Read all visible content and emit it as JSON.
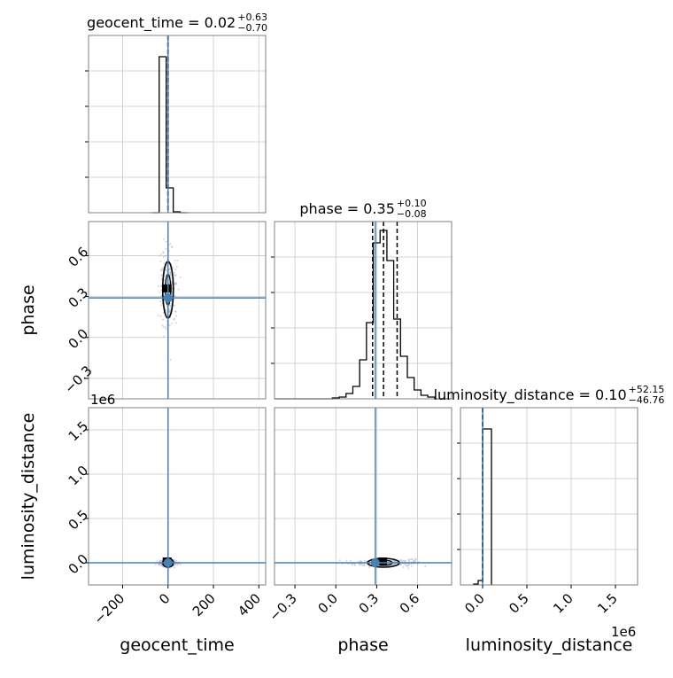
{
  "chart_data": {
    "type": "corner",
    "parameters": [
      "geocent_time",
      "phase",
      "luminosity_distance"
    ],
    "grid": true,
    "colors": {
      "hist": "#000000",
      "truth": "#4682b4",
      "grid": "#c8c8c8",
      "frame": "#808080",
      "scatter": "#b8b8c8"
    },
    "titles": [
      {
        "param": "geocent_time",
        "label": "geocent_time = 0.02",
        "sup": "+0.63",
        "sub": "−0.70"
      },
      {
        "param": "phase",
        "label": "phase = 0.35",
        "sup": "+0.10",
        "sub": "−0.08"
      },
      {
        "param": "luminosity_distance",
        "label": "luminosity_distance = 0.10",
        "sup": "+52.15",
        "sub": "−46.76"
      }
    ],
    "axes": {
      "geocent_time": {
        "range": [
          -350,
          430
        ],
        "ticks": [
          -200,
          0,
          200,
          400
        ],
        "tick_labels": [
          "−200",
          "0",
          "200",
          "400"
        ]
      },
      "phase": {
        "range": [
          -0.45,
          0.85
        ],
        "ticks": [
          -0.3,
          0.0,
          0.3,
          0.6
        ],
        "tick_labels": [
          "−0.3",
          "0.0",
          "0.3",
          "0.6"
        ]
      },
      "luminosity_distance": {
        "range": [
          -0.25,
          1.75
        ],
        "ticks": [
          0.0,
          0.5,
          1.0,
          1.5
        ],
        "tick_labels": [
          "0.0",
          "0.5",
          "1.0",
          "1.5"
        ],
        "offset_text": "1e6"
      }
    },
    "truths": {
      "geocent_time": 0,
      "phase": 0.29,
      "luminosity_distance": 0.0
    },
    "hist_1d": {
      "geocent_time": {
        "edges": [
          -70,
          -39,
          -8,
          23,
          54,
          85
        ],
        "counts": [
          0,
          0.88,
          0.14,
          0.005,
          0
        ],
        "quantiles": [
          -0.68,
          0.02,
          0.65
        ]
      },
      "phase": {
        "edges": [
          -0.45,
          -0.025,
          0.025,
          0.075,
          0.125,
          0.175,
          0.225,
          0.275,
          0.325,
          0.375,
          0.425,
          0.475,
          0.525,
          0.575,
          0.625,
          0.675,
          0.725,
          0.85
        ],
        "counts": [
          0,
          0.005,
          0.01,
          0.03,
          0.07,
          0.22,
          0.43,
          0.88,
          0.95,
          0.78,
          0.45,
          0.24,
          0.12,
          0.05,
          0.02,
          0.01,
          0
        ],
        "quantiles": [
          0.27,
          0.35,
          0.45
        ]
      },
      "luminosity_distance": {
        "edges": [
          -0.1,
          -0.05,
          0.0,
          0.1
        ],
        "counts": [
          0.005,
          0.025,
          0.88
        ],
        "quantiles": [
          -4.7e-05,
          1e-07,
          5.2e-05
        ]
      }
    },
    "axis_labels": {
      "x": [
        "geocent_time",
        "phase",
        "luminosity_distance"
      ],
      "y": [
        "phase",
        "luminosity_distance"
      ]
    },
    "offset_labels": {
      "luminosity_distance_y": "1e6",
      "luminosity_distance_x": "1e6"
    }
  }
}
